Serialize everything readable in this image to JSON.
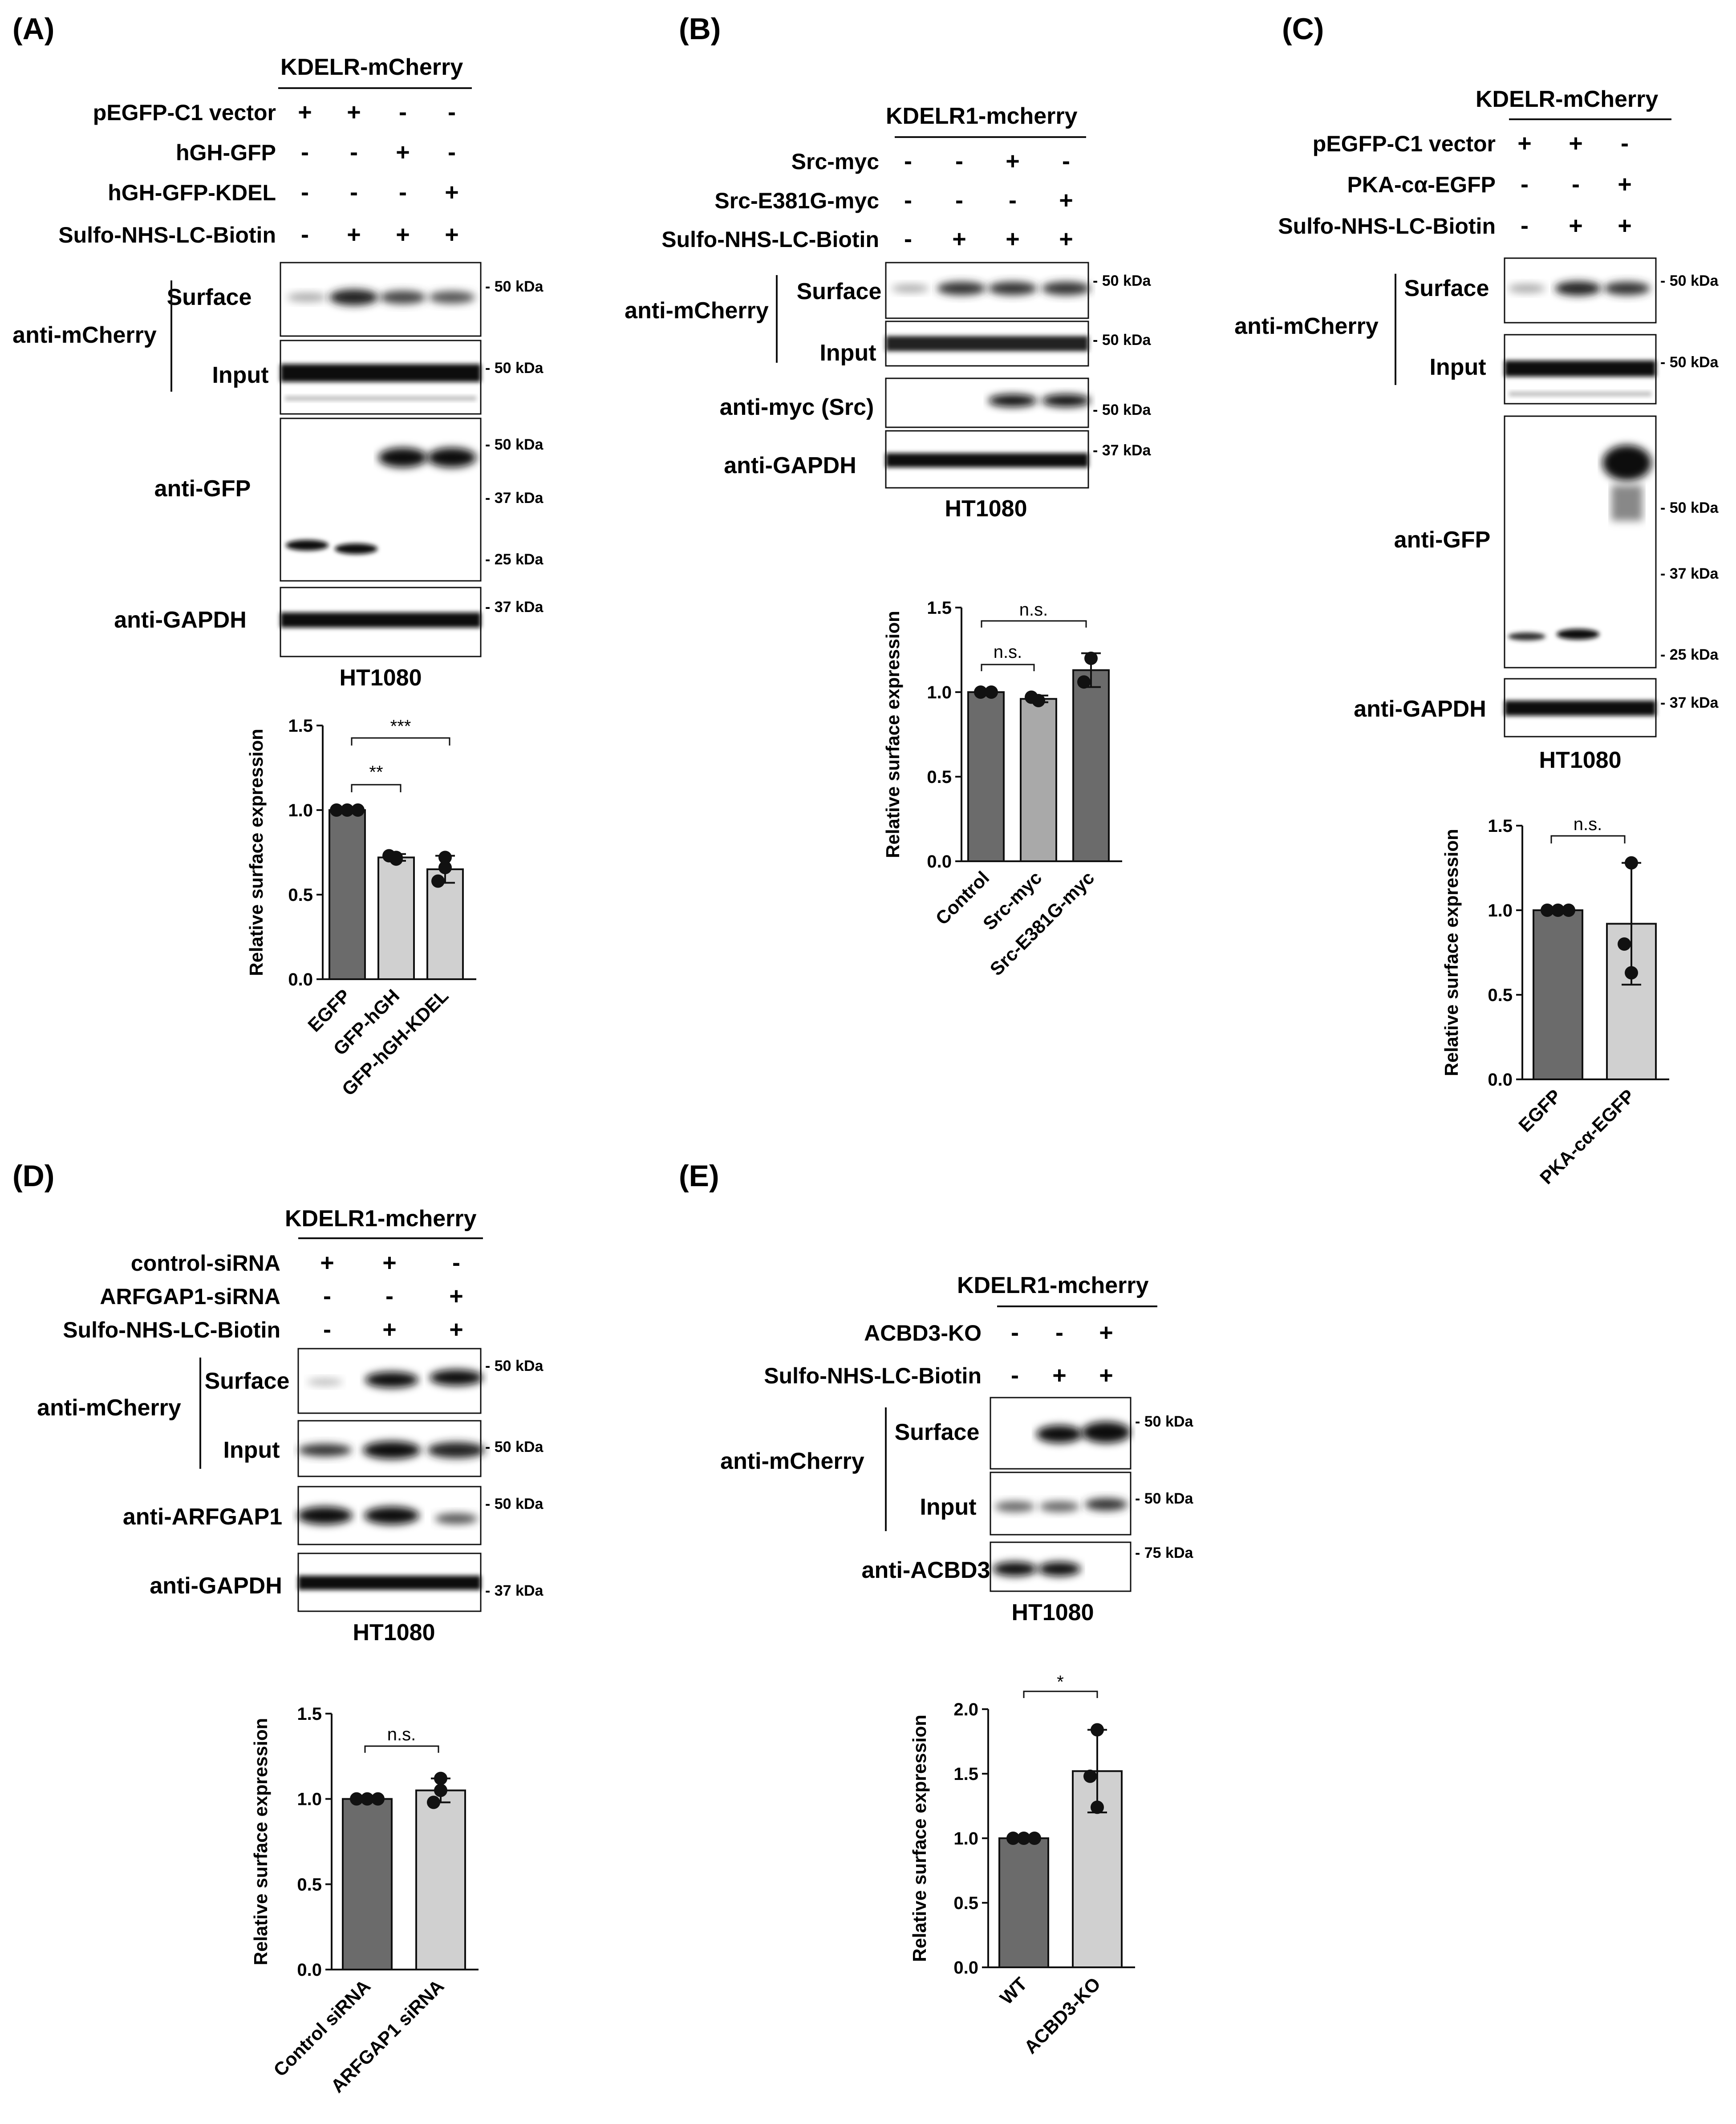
{
  "panels": {
    "A": {
      "label": "(A)",
      "header": "KDELR-mCherry",
      "conditions": [
        {
          "name": "pEGFP-C1 vector",
          "signs": [
            "+",
            "+",
            "-",
            "-"
          ]
        },
        {
          "name": "hGH-GFP",
          "signs": [
            "-",
            "-",
            "+",
            "-"
          ]
        },
        {
          "name": "hGH-GFP-KDEL",
          "signs": [
            "-",
            "-",
            "-",
            "+"
          ]
        },
        {
          "name": "Sulfo-NHS-LC-Biotin",
          "signs": [
            "-",
            "+",
            "+",
            "+"
          ]
        }
      ],
      "blots": {
        "antibody_mcherry": "anti-mCherry",
        "surface": "Surface",
        "input": "Input",
        "antibody_gfp": "anti-GFP",
        "antibody_gapdh": "anti-GAPDH"
      },
      "markers": {
        "m50a": "- 50 kDa",
        "m50b": "- 50 kDa",
        "m50c": "- 50 kDa",
        "m37a": "- 37 kDa",
        "m25": "- 25 kDa",
        "m37b": "- 37 kDa"
      },
      "cell_line": "HT1080",
      "significance": [
        "***",
        "**"
      ]
    },
    "B": {
      "label": "(B)",
      "header": "KDELR1-mcherry",
      "conditions": [
        {
          "name": "Src-myc",
          "signs": [
            "-",
            "-",
            "+",
            "-"
          ]
        },
        {
          "name": "Src-E381G-myc",
          "signs": [
            "-",
            "-",
            "-",
            "+"
          ]
        },
        {
          "name": "Sulfo-NHS-LC-Biotin",
          "signs": [
            "-",
            "+",
            "+",
            "+"
          ]
        }
      ],
      "blots": {
        "antibody_mcherry": "anti-mCherry",
        "surface": "Surface",
        "input": "Input",
        "antibody_myc": "anti-myc (Src)",
        "antibody_gapdh": "anti-GAPDH"
      },
      "markers": {
        "m50a": "- 50 kDa",
        "m50b": "- 50 kDa",
        "m50c": "- 50 kDa",
        "m37": "- 37 kDa"
      },
      "cell_line": "HT1080",
      "significance": [
        "n.s.",
        "n.s."
      ]
    },
    "C": {
      "label": "(C)",
      "header": "KDELR-mCherry",
      "conditions": [
        {
          "name": "pEGFP-C1 vector",
          "signs": [
            "+",
            "+",
            "-"
          ]
        },
        {
          "name": "PKA-cα-EGFP",
          "signs": [
            "-",
            "-",
            "+"
          ]
        },
        {
          "name": "Sulfo-NHS-LC-Biotin",
          "signs": [
            "-",
            "+",
            "+"
          ]
        }
      ],
      "blots": {
        "antibody_mcherry": "anti-mCherry",
        "surface": "Surface",
        "input": "Input",
        "antibody_gfp": "anti-GFP",
        "antibody_gapdh": "anti-GAPDH"
      },
      "markers": {
        "m50a": "- 50 kDa",
        "m50b": "- 50 kDa",
        "m50c": "- 50 kDa",
        "m37a": "- 37 kDa",
        "m25": "- 25 kDa",
        "m37b": "- 37 kDa"
      },
      "cell_line": "HT1080",
      "significance": [
        "n.s."
      ]
    },
    "D": {
      "label": "(D)",
      "header": "KDELR1-mcherry",
      "conditions": [
        {
          "name": "control-siRNA",
          "signs": [
            "+",
            "+",
            "-"
          ]
        },
        {
          "name": "ARFGAP1-siRNA",
          "signs": [
            "-",
            "-",
            "+"
          ]
        },
        {
          "name": "Sulfo-NHS-LC-Biotin",
          "signs": [
            "-",
            "+",
            "+"
          ]
        }
      ],
      "blots": {
        "antibody_mcherry": "anti-mCherry",
        "surface": "Surface",
        "input": "Input",
        "antibody_arfgap1": "anti-ARFGAP1",
        "antibody_gapdh": "anti-GAPDH"
      },
      "markers": {
        "m50a": "- 50 kDa",
        "m50b": "- 50 kDa",
        "m50c": "- 50 kDa",
        "m37": "- 37 kDa"
      },
      "cell_line": "HT1080",
      "significance": [
        "n.s."
      ]
    },
    "E": {
      "label": "(E)",
      "header": "KDELR1-mcherry",
      "conditions": [
        {
          "name": "ACBD3-KO",
          "signs": [
            "-",
            "-",
            "+"
          ]
        },
        {
          "name": "Sulfo-NHS-LC-Biotin",
          "signs": [
            "-",
            "+",
            "+"
          ]
        }
      ],
      "blots": {
        "antibody_mcherry": "anti-mCherry",
        "surface": "Surface",
        "input": "Input",
        "antibody_acbd3": "anti-ACBD3"
      },
      "markers": {
        "m50a": "- 50 kDa",
        "m50b": "- 50 kDa",
        "m75": "- 75 kDa"
      },
      "cell_line": "HT1080",
      "significance": [
        "*"
      ]
    }
  },
  "chart_data": [
    {
      "id": "A",
      "type": "bar",
      "ylabel": "Relative surface expression",
      "ylim": [
        0,
        1.5
      ],
      "yticks": [
        "0.0",
        "0.5",
        "1.0",
        "1.5"
      ],
      "categories": [
        "EGFP",
        "GFP-hGH",
        "GFP-hGH-KDEL"
      ],
      "values": [
        1.0,
        0.72,
        0.65
      ],
      "errors": [
        0.0,
        0.02,
        0.08
      ],
      "points": [
        [
          1.0,
          1.0,
          1.0
        ],
        [
          0.71,
          0.73,
          0.72
        ],
        [
          0.72,
          0.58,
          0.66
        ]
      ],
      "bar_colors": [
        "#6b6b6b",
        "#d0d0d0",
        "#d0d0d0"
      ]
    },
    {
      "id": "B",
      "type": "bar",
      "ylabel": "Relative surface expression",
      "ylim": [
        0,
        1.5
      ],
      "yticks": [
        "0.0",
        "0.5",
        "1.0",
        "1.5"
      ],
      "categories": [
        "Control",
        "Src-myc",
        "Src-E381G-myc"
      ],
      "values": [
        1.0,
        0.96,
        1.13
      ],
      "errors": [
        0.0,
        0.02,
        0.1
      ],
      "points": [
        [
          1.0,
          1.0
        ],
        [
          0.95,
          0.97
        ],
        [
          1.2,
          1.06
        ]
      ],
      "bar_colors": [
        "#6b6b6b",
        "#a9a9a9",
        "#6b6b6b"
      ]
    },
    {
      "id": "C",
      "type": "bar",
      "ylabel": "Relative surface expression",
      "ylim": [
        0,
        1.5
      ],
      "yticks": [
        "0.0",
        "0.5",
        "1.0",
        "1.5"
      ],
      "categories": [
        "EGFP",
        "PKA-cα-EGFP"
      ],
      "values": [
        1.0,
        0.92
      ],
      "errors": [
        0.0,
        0.36
      ],
      "points": [
        [
          1.0,
          1.0,
          1.0
        ],
        [
          1.28,
          0.8,
          0.63
        ]
      ],
      "bar_colors": [
        "#6b6b6b",
        "#d0d0d0"
      ]
    },
    {
      "id": "D",
      "type": "bar",
      "ylabel": "Relative surface expression",
      "ylim": [
        0,
        1.5
      ],
      "yticks": [
        "0.0",
        "0.5",
        "1.0",
        "1.5"
      ],
      "categories": [
        "Control siRNA",
        "ARFGAP1 siRNA"
      ],
      "values": [
        1.0,
        1.05
      ],
      "errors": [
        0.0,
        0.07
      ],
      "points": [
        [
          1.0,
          1.0,
          1.0
        ],
        [
          1.12,
          0.98,
          1.05
        ]
      ],
      "bar_colors": [
        "#6b6b6b",
        "#d0d0d0"
      ]
    },
    {
      "id": "E",
      "type": "bar",
      "ylabel": "Relative surface expression",
      "ylim": [
        0,
        2.0
      ],
      "yticks": [
        "0.0",
        "0.5",
        "1.0",
        "1.5",
        "2.0"
      ],
      "categories": [
        "WT",
        "ACBD3-KO"
      ],
      "values": [
        1.0,
        1.52
      ],
      "errors": [
        0.0,
        0.32
      ],
      "points": [
        [
          1.0,
          1.0,
          1.0
        ],
        [
          1.84,
          1.48,
          1.24
        ]
      ],
      "bar_colors": [
        "#6b6b6b",
        "#d0d0d0"
      ]
    }
  ]
}
